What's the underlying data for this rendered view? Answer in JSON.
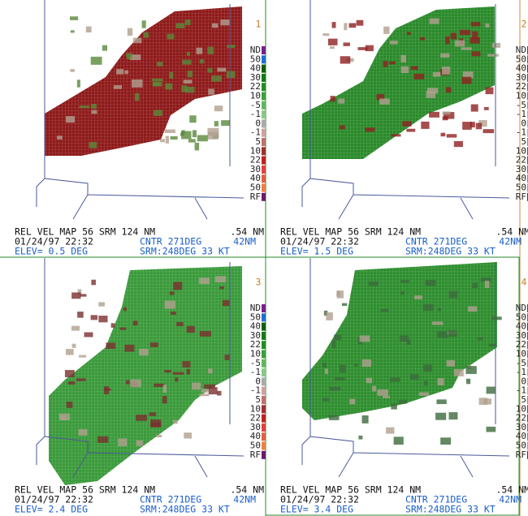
{
  "legend": [
    "ND",
    "50",
    "40",
    "30",
    "22",
    "10",
    "-5",
    "-1",
    "0",
    "-1",
    "5",
    "10",
    "22",
    "30",
    "40",
    "50",
    "RF"
  ],
  "panels": [
    {
      "number": "1",
      "title": "REL VEL MAP 56 SRM 124 NM",
      "res": ".54 NM",
      "datetime": "01/24/97 22:32",
      "center": "CNTR 271DEG",
      "range": "42NM",
      "elev": "ELEV= 0.5 DEG",
      "srm": "SRM:248DEG 33 KT"
    },
    {
      "number": "2",
      "title": "REL VEL MAP 56 SRM 124 NM",
      "res": ".54 NM",
      "datetime": "01/24/97 22:32",
      "center": "CNTR 271DEG",
      "range": "42NM",
      "elev": "ELEV= 1.5 DEG",
      "srm": "SRM:248DEG 33 KT"
    },
    {
      "number": "3",
      "title": "REL VEL MAP 56 SRM 124 NM",
      "res": ".54 NM",
      "datetime": "01/24/97 22:32",
      "center": "CNTR 271DEG",
      "range": "42NM",
      "elev": "ELEV= 2.4 DEG",
      "srm": "SRM:248DEG 33 KT"
    },
    {
      "number": "4",
      "title": "REL VEL MAP 56 SRM 124 NM",
      "res": ".54 NM",
      "datetime": "01/24/97 22:32",
      "center": "CNTR 271DEG",
      "range": "42NM",
      "elev": "ELEV= 3.4 DEG",
      "srm": "SRM:248DEG 33 KT"
    }
  ]
}
